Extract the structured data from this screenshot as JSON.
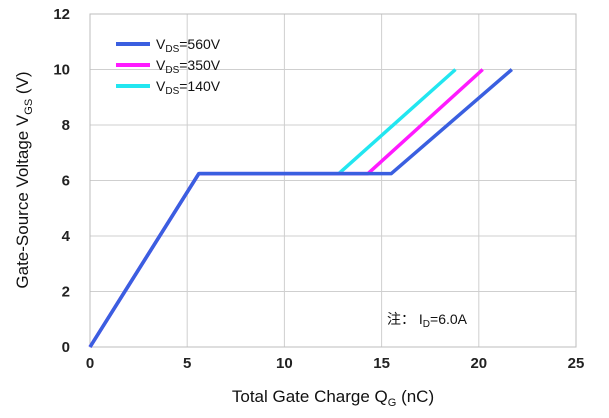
{
  "chart_data": {
    "type": "line",
    "xlabel": "Total Gate Charge Q",
    "xlabel_sub": "G",
    "xlabel_unit": " (nC)",
    "ylabel": "Gate-Source Voltage V",
    "ylabel_sub": "GS",
    "ylabel_unit": " (V)",
    "xlim": [
      0,
      25
    ],
    "ylim": [
      0,
      12
    ],
    "xticks": [
      0,
      5,
      10,
      15,
      20,
      25
    ],
    "yticks": [
      0,
      2,
      4,
      6,
      8,
      10,
      12
    ],
    "grid": true,
    "legend_position": "top-left",
    "series": [
      {
        "name_prefix": "V",
        "name_sub": "DS",
        "name_suffix": "=560V",
        "color": "#3a5fe0",
        "x": [
          0,
          5.6,
          15.5,
          21.7
        ],
        "y": [
          0,
          6.25,
          6.25,
          10
        ]
      },
      {
        "name_prefix": "V",
        "name_sub": "DS",
        "name_suffix": "=350V",
        "color": "#ff1aff",
        "x": [
          0,
          5.6,
          14.3,
          20.2
        ],
        "y": [
          0,
          6.25,
          6.25,
          10
        ]
      },
      {
        "name_prefix": "V",
        "name_sub": "DS",
        "name_suffix": "=140V",
        "color": "#22e6f0",
        "x": [
          0,
          5.6,
          12.8,
          18.8
        ],
        "y": [
          0,
          6.25,
          6.25,
          10
        ]
      }
    ],
    "annotation": {
      "prefix": "注：  I",
      "sub": "D",
      "suffix": "=6.0A"
    }
  }
}
